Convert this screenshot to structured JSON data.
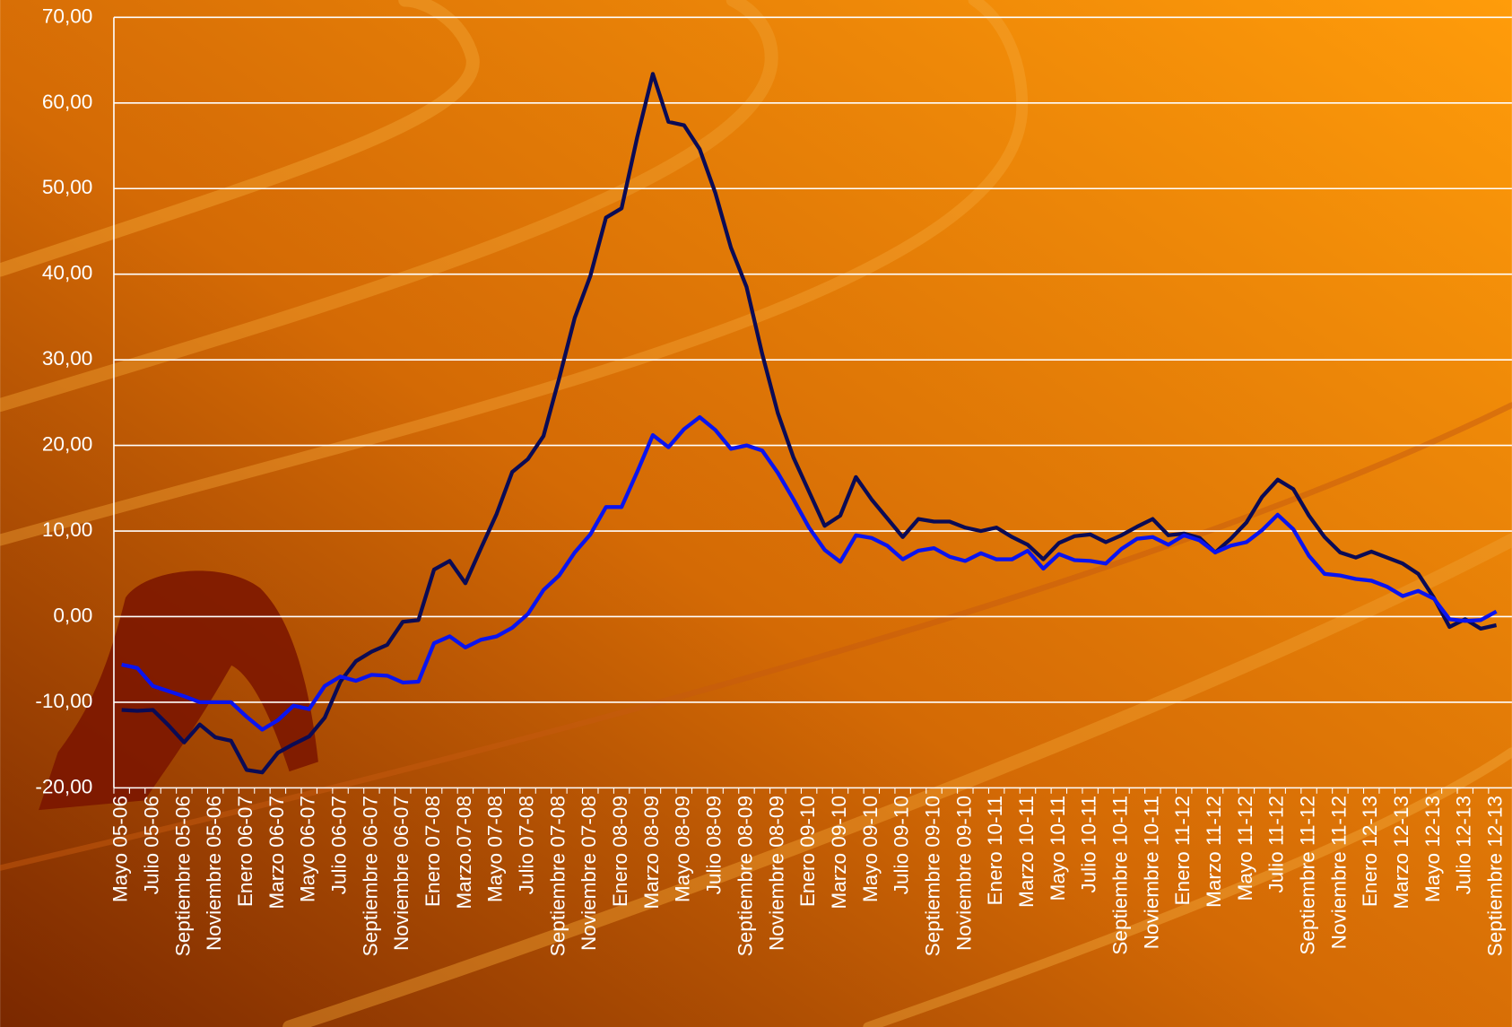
{
  "chart_data": {
    "type": "line",
    "categories": [
      "Mayo 05-06",
      null,
      "Julio 05-06",
      null,
      "Septiembre 05-06",
      null,
      "Noviembre 05-06",
      null,
      "Enero 06-07",
      null,
      "Marzo 06-07",
      null,
      "Mayo 06-07",
      null,
      "Julio 06-07",
      null,
      "Septiembre 06-07",
      null,
      "Noviembre 06-07",
      null,
      "Enero 07-08",
      null,
      "Marzo.07-08",
      null,
      "Mayo 07-08",
      null,
      "Julio 07-08",
      null,
      "Septiembre 07-08",
      null,
      "Noviembre 07-08",
      null,
      "Enero 08-09",
      null,
      "Marzo 08-09",
      null,
      "Mayo 08-09",
      null,
      "Julio 08-09",
      null,
      "Septiembre 08-09",
      null,
      "Noviembre 08-09",
      null,
      "Enero 09-10",
      null,
      "Marzo 09-10",
      null,
      "Mayo 09-10",
      null,
      "Julio 09-10",
      null,
      "Septiembre 09-10",
      null,
      "Noviembre 09-10",
      null,
      "Enero 10-11",
      null,
      "Marzo 10-11",
      null,
      "Mayo 10-11",
      null,
      "Julio 10-11",
      null,
      "Septiembre 10-11",
      null,
      "Noviembre 10-11",
      null,
      "Enero 11-12",
      null,
      "Marzo 11-12",
      null,
      "Mayo 11-12",
      null,
      "Julio 11-12",
      null,
      "Septiembre 11-12",
      null,
      "Noviembre 11-12",
      null,
      "Enero 12-13",
      null,
      "Marzo 12-13",
      null,
      "Mayo 12-13",
      null,
      "Julio 12-13",
      null,
      "Septiembre 12-13"
    ],
    "series": [
      {
        "color": "#0b0b55",
        "values": [
          -10.9,
          -11.0,
          -10.9,
          -12.7,
          -14.7,
          -12.6,
          -14.1,
          -14.5,
          -17.9,
          -18.2,
          -15.9,
          -14.9,
          -14.0,
          -11.8,
          -7.6,
          -5.2,
          -4.1,
          -3.3,
          -0.6,
          -0.4,
          5.5,
          6.5,
          3.9,
          8.0,
          12.0,
          16.9,
          18.4,
          21.1,
          27.8,
          34.9,
          39.8,
          46.6,
          47.7,
          56.0,
          63.4,
          57.8,
          57.4,
          54.6,
          49.5,
          43.1,
          38.5,
          30.7,
          23.8,
          18.6,
          14.6,
          10.6,
          11.8,
          16.3,
          13.7,
          11.5,
          9.3,
          11.4,
          11.1,
          11.1,
          10.4,
          10.0,
          10.4,
          9.3,
          8.4,
          6.7,
          8.6,
          9.4,
          9.6,
          8.7,
          9.5,
          10.5,
          11.4,
          9.5,
          9.7,
          9.2,
          7.5,
          9.1,
          11.0,
          14.0,
          16.0,
          14.9,
          11.8,
          9.3,
          7.5,
          6.9,
          7.6,
          6.9,
          6.2,
          5.0,
          2.2,
          -1.2,
          -0.3,
          -1.4,
          -1.0
        ]
      },
      {
        "color": "#0a14f0",
        "values": [
          -5.6,
          -6.0,
          -8.1,
          -8.7,
          -9.3,
          -10.0,
          -10.0,
          -10.0,
          -11.7,
          -13.2,
          -12.1,
          -10.4,
          -10.8,
          -8.1,
          -7.0,
          -7.5,
          -6.8,
          -6.9,
          -7.7,
          -7.6,
          -3.1,
          -2.3,
          -3.6,
          -2.7,
          -2.3,
          -1.3,
          0.3,
          3.1,
          4.8,
          7.5,
          9.6,
          12.8,
          12.8,
          16.9,
          21.2,
          19.8,
          21.9,
          23.3,
          21.8,
          19.6,
          20.0,
          19.4,
          16.8,
          13.7,
          10.4,
          7.8,
          6.4,
          9.5,
          9.2,
          8.3,
          6.7,
          7.7,
          8.0,
          7.0,
          6.5,
          7.4,
          6.7,
          6.7,
          7.7,
          5.6,
          7.3,
          6.6,
          6.5,
          6.2,
          7.9,
          9.1,
          9.3,
          8.4,
          9.5,
          8.9,
          7.5,
          8.3,
          8.7,
          10.1,
          11.9,
          10.2,
          7.1,
          5.0,
          4.8,
          4.4,
          4.2,
          3.5,
          2.4,
          3.0,
          2.1,
          -0.3,
          -0.5,
          -0.4,
          0.6
        ]
      }
    ],
    "ylim": [
      -20,
      70
    ],
    "yticks": [
      {
        "value": -20,
        "label": "-20,00"
      },
      {
        "value": -10,
        "label": "-10,00"
      },
      {
        "value": 0,
        "label": "0,00"
      },
      {
        "value": 10,
        "label": "10,00"
      },
      {
        "value": 20,
        "label": "20,00"
      },
      {
        "value": 30,
        "label": "30,00"
      },
      {
        "value": 40,
        "label": "40,00"
      },
      {
        "value": 50,
        "label": "50,00"
      },
      {
        "value": 60,
        "label": "60,00"
      },
      {
        "value": 70,
        "label": "70,00"
      }
    ],
    "grid": true
  }
}
